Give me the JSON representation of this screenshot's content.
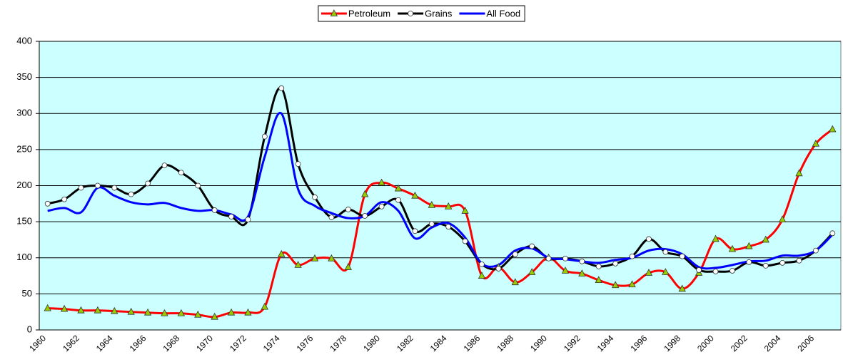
{
  "chart_data": {
    "type": "line",
    "categories": [
      "1960",
      null,
      "1962",
      null,
      "1964",
      null,
      "1966",
      null,
      "1968",
      null,
      "1970",
      null,
      "1972",
      null,
      "1974",
      null,
      "1976",
      null,
      "1978",
      null,
      "1980",
      null,
      "1982",
      null,
      "1984",
      null,
      "1986",
      null,
      "1988",
      null,
      "1990",
      null,
      "1992",
      null,
      "1994",
      null,
      "1996",
      null,
      "1998",
      null,
      "2000",
      null,
      "2002",
      null,
      "2004",
      null,
      "2006",
      null
    ],
    "series": [
      {
        "name": "Petroleum",
        "color": "#ff0000",
        "marker": "triangle",
        "marker_color": "#99cc00",
        "values": [
          30,
          29,
          27,
          27,
          26,
          25,
          24,
          23,
          23,
          21,
          18,
          24,
          24,
          32,
          105,
          90,
          99,
          99,
          87,
          188,
          204,
          196,
          186,
          173,
          171,
          165,
          75,
          87,
          66,
          80,
          100,
          82,
          78,
          69,
          62,
          63,
          79,
          80,
          57,
          79,
          126,
          112,
          116,
          125,
          153,
          217,
          258,
          278
        ]
      },
      {
        "name": "Grains",
        "color": "#000000",
        "marker": "circle",
        "marker_color": "#ffffff",
        "values": [
          175,
          181,
          197,
          200,
          197,
          188,
          203,
          228,
          218,
          200,
          166,
          157,
          153,
          268,
          335,
          230,
          184,
          156,
          167,
          158,
          171,
          180,
          137,
          147,
          143,
          123,
          91,
          85,
          105,
          116,
          99,
          99,
          95,
          88,
          92,
          102,
          126,
          108,
          102,
          83,
          81,
          82,
          94,
          89,
          93,
          96,
          110,
          134
        ]
      },
      {
        "name": "All Food",
        "color": "#0000ff",
        "marker": "none",
        "values": [
          165,
          169,
          163,
          197,
          186,
          177,
          174,
          176,
          169,
          165,
          166,
          160,
          157,
          240,
          300,
          195,
          172,
          162,
          155,
          158,
          177,
          165,
          127,
          142,
          148,
          128,
          92,
          90,
          110,
          113,
          100,
          98,
          95,
          93,
          97,
          100,
          110,
          112,
          105,
          87,
          86,
          90,
          95,
          96,
          103,
          103,
          110,
          132
        ]
      }
    ],
    "ylim": [
      0,
      400
    ],
    "yticks": [
      0,
      50,
      100,
      150,
      200,
      250,
      300,
      350,
      400
    ],
    "grid": true,
    "legend": "top",
    "plot_background": "#ccffff"
  }
}
